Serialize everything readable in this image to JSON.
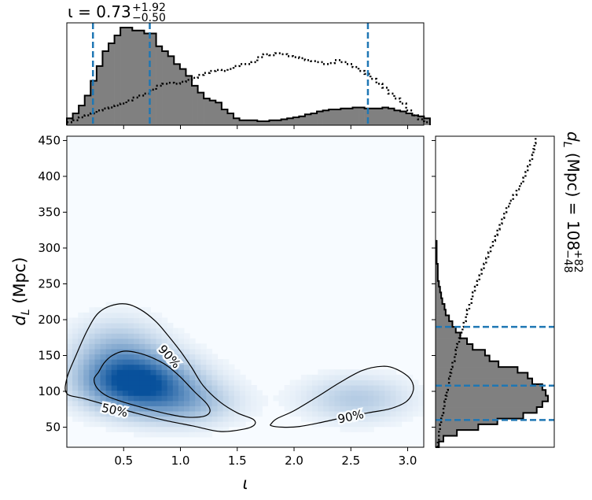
{
  "colors": {
    "accent": "#1f77b4",
    "hist_fill": "#808080",
    "density_low": "#f7fbff",
    "density_high": "#08519c"
  },
  "top_title": {
    "text": "ι = 0.73",
    "sup": "+1.92",
    "sub": "−0.50"
  },
  "right_title": {
    "text": "d",
    "sub_L": "L",
    "rest": " (Mpc) = 108",
    "sup": "+82",
    "sub": "−48"
  },
  "chart_data": [
    {
      "id": "joint",
      "type": "heatmap",
      "xlabel": "ι",
      "ylabel": "d_L (Mpc)",
      "ylabel_parts": {
        "main": "d",
        "sub": "L",
        "rest": " (Mpc)"
      },
      "xlim": [
        0.0,
        3.1416
      ],
      "ylim": [
        22,
        456
      ],
      "x_ticks": [
        0.5,
        1.0,
        1.5,
        2.0,
        2.5,
        3.0
      ],
      "x_tick_labels": [
        "0.5",
        "1.0",
        "1.5",
        "2.0",
        "2.5",
        "3.0"
      ],
      "y_ticks": [
        50,
        100,
        150,
        200,
        250,
        300,
        350,
        400,
        450
      ],
      "y_tick_labels": [
        "50",
        "100",
        "150",
        "200",
        "250",
        "300",
        "350",
        "400",
        "450"
      ],
      "density_blobs": [
        {
          "cx": 0.62,
          "cy": 113,
          "sx": 0.3,
          "sy": 24,
          "amp": 1.0
        },
        {
          "cx": 0.45,
          "cy": 150,
          "sx": 0.25,
          "sy": 30,
          "amp": 0.35
        },
        {
          "cx": 1.0,
          "cy": 85,
          "sx": 0.3,
          "sy": 20,
          "amp": 0.35
        },
        {
          "cx": 2.55,
          "cy": 90,
          "sx": 0.3,
          "sy": 20,
          "amp": 0.22
        }
      ],
      "contours": [
        {
          "label": "50%",
          "label_at": [
            0.42,
            73
          ],
          "label_angle": 12,
          "points": [
            [
              0.28,
              127
            ],
            [
              0.33,
              140
            ],
            [
              0.4,
              150
            ],
            [
              0.5,
              156
            ],
            [
              0.62,
              154
            ],
            [
              0.75,
              147
            ],
            [
              0.88,
              136
            ],
            [
              1.0,
              120
            ],
            [
              1.12,
              100
            ],
            [
              1.23,
              83
            ],
            [
              1.26,
              72
            ],
            [
              1.2,
              65
            ],
            [
              1.05,
              64
            ],
            [
              0.9,
              68
            ],
            [
              0.72,
              75
            ],
            [
              0.52,
              84
            ],
            [
              0.36,
              93
            ],
            [
              0.27,
              104
            ],
            [
              0.24,
              117
            ]
          ]
        },
        {
          "label": "90%",
          "label_at": [
            0.9,
            148
          ],
          "label_angle": 48,
          "points": [
            [
              0.0,
              118
            ],
            [
              0.08,
              150
            ],
            [
              0.18,
              185
            ],
            [
              0.27,
              208
            ],
            [
              0.38,
              219
            ],
            [
              0.52,
              222
            ],
            [
              0.65,
              214
            ],
            [
              0.78,
              198
            ],
            [
              0.88,
              180
            ],
            [
              1.0,
              156
            ],
            [
              1.1,
              133
            ],
            [
              1.2,
              108
            ],
            [
              1.35,
              85
            ],
            [
              1.5,
              70
            ],
            [
              1.64,
              61
            ],
            [
              1.65,
              53
            ],
            [
              1.55,
              47
            ],
            [
              1.35,
              44
            ],
            [
              1.1,
              52
            ],
            [
              0.85,
              60
            ],
            [
              0.6,
              70
            ],
            [
              0.35,
              81
            ],
            [
              0.15,
              90
            ],
            [
              0.0,
              97
            ]
          ]
        },
        {
          "label": "90%",
          "label_at": [
            2.5,
            64
          ],
          "label_angle": -12,
          "points": [
            [
              1.8,
              55
            ],
            [
              1.85,
              62
            ],
            [
              2.0,
              73
            ],
            [
              2.2,
              92
            ],
            [
              2.4,
              112
            ],
            [
              2.6,
              129
            ],
            [
              2.78,
              135
            ],
            [
              2.9,
              131
            ],
            [
              3.02,
              118
            ],
            [
              3.05,
              102
            ],
            [
              2.99,
              86
            ],
            [
              2.85,
              76
            ],
            [
              2.65,
              70
            ],
            [
              2.45,
              64
            ],
            [
              2.25,
              57
            ],
            [
              2.05,
              51
            ],
            [
              1.9,
              50
            ],
            [
              1.8,
              52
            ]
          ]
        }
      ]
    },
    {
      "id": "top-marginal",
      "type": "bar",
      "xlim": [
        0.0,
        3.1416
      ],
      "bin_width": 0.0524,
      "x_start": 0.0,
      "values": [
        0.07,
        0.12,
        0.2,
        0.3,
        0.45,
        0.6,
        0.75,
        0.83,
        0.91,
        0.99,
        0.99,
        0.96,
        0.96,
        0.93,
        0.93,
        0.8,
        0.75,
        0.7,
        0.62,
        0.57,
        0.5,
        0.4,
        0.33,
        0.27,
        0.25,
        0.23,
        0.16,
        0.12,
        0.07,
        0.05,
        0.05,
        0.05,
        0.04,
        0.04,
        0.05,
        0.05,
        0.06,
        0.07,
        0.08,
        0.09,
        0.11,
        0.12,
        0.14,
        0.15,
        0.16,
        0.16,
        0.17,
        0.17,
        0.18,
        0.18,
        0.17,
        0.17,
        0.17,
        0.18,
        0.17,
        0.15,
        0.14,
        0.12,
        0.1,
        0.09,
        0.07
      ],
      "prior": [
        0.03,
        0.05,
        0.08,
        0.1,
        0.12,
        0.15,
        0.17,
        0.18,
        0.2,
        0.22,
        0.25,
        0.28,
        0.3,
        0.32,
        0.36,
        0.4,
        0.42,
        0.43,
        0.42,
        0.44,
        0.46,
        0.48,
        0.51,
        0.53,
        0.55,
        0.56,
        0.55,
        0.57,
        0.6,
        0.62,
        0.62,
        0.64,
        0.69,
        0.72,
        0.71,
        0.73,
        0.72,
        0.7,
        0.69,
        0.68,
        0.66,
        0.65,
        0.64,
        0.62,
        0.63,
        0.66,
        0.64,
        0.62,
        0.59,
        0.55,
        0.52,
        0.47,
        0.42,
        0.38,
        0.32,
        0.27,
        0.22,
        0.15,
        0.1,
        0.06,
        0.03
      ],
      "quantile_lines": [
        0.23,
        0.73,
        2.65
      ]
    },
    {
      "id": "right-marginal",
      "type": "bar",
      "orientation": "horizontal",
      "ylim": [
        22,
        456
      ],
      "bin_width": 8,
      "y_start": 22,
      "values": [
        0.03,
        0.07,
        0.19,
        0.38,
        0.55,
        0.78,
        0.9,
        0.95,
        1.0,
        0.98,
        0.95,
        0.86,
        0.82,
        0.73,
        0.56,
        0.48,
        0.44,
        0.33,
        0.28,
        0.22,
        0.18,
        0.15,
        0.12,
        0.09,
        0.08,
        0.06,
        0.05,
        0.04,
        0.03,
        0.02,
        0.02,
        0.02,
        0.01,
        0.01,
        0.01,
        0.01
      ],
      "prior": [
        0.02,
        0.03,
        0.03,
        0.04,
        0.05,
        0.06,
        0.07,
        0.08,
        0.09,
        0.1,
        0.11,
        0.12,
        0.13,
        0.14,
        0.15,
        0.17,
        0.18,
        0.19,
        0.21,
        0.22,
        0.24,
        0.25,
        0.27,
        0.28,
        0.3,
        0.32,
        0.33,
        0.35,
        0.37,
        0.39,
        0.41,
        0.43,
        0.45,
        0.47,
        0.49,
        0.51,
        0.53,
        0.55,
        0.57,
        0.59,
        0.61,
        0.63,
        0.66,
        0.69,
        0.72,
        0.75,
        0.78,
        0.8,
        0.82,
        0.84,
        0.86,
        0.87,
        0.88,
        0.89
      ],
      "quantile_lines": [
        60,
        108,
        190
      ]
    }
  ]
}
